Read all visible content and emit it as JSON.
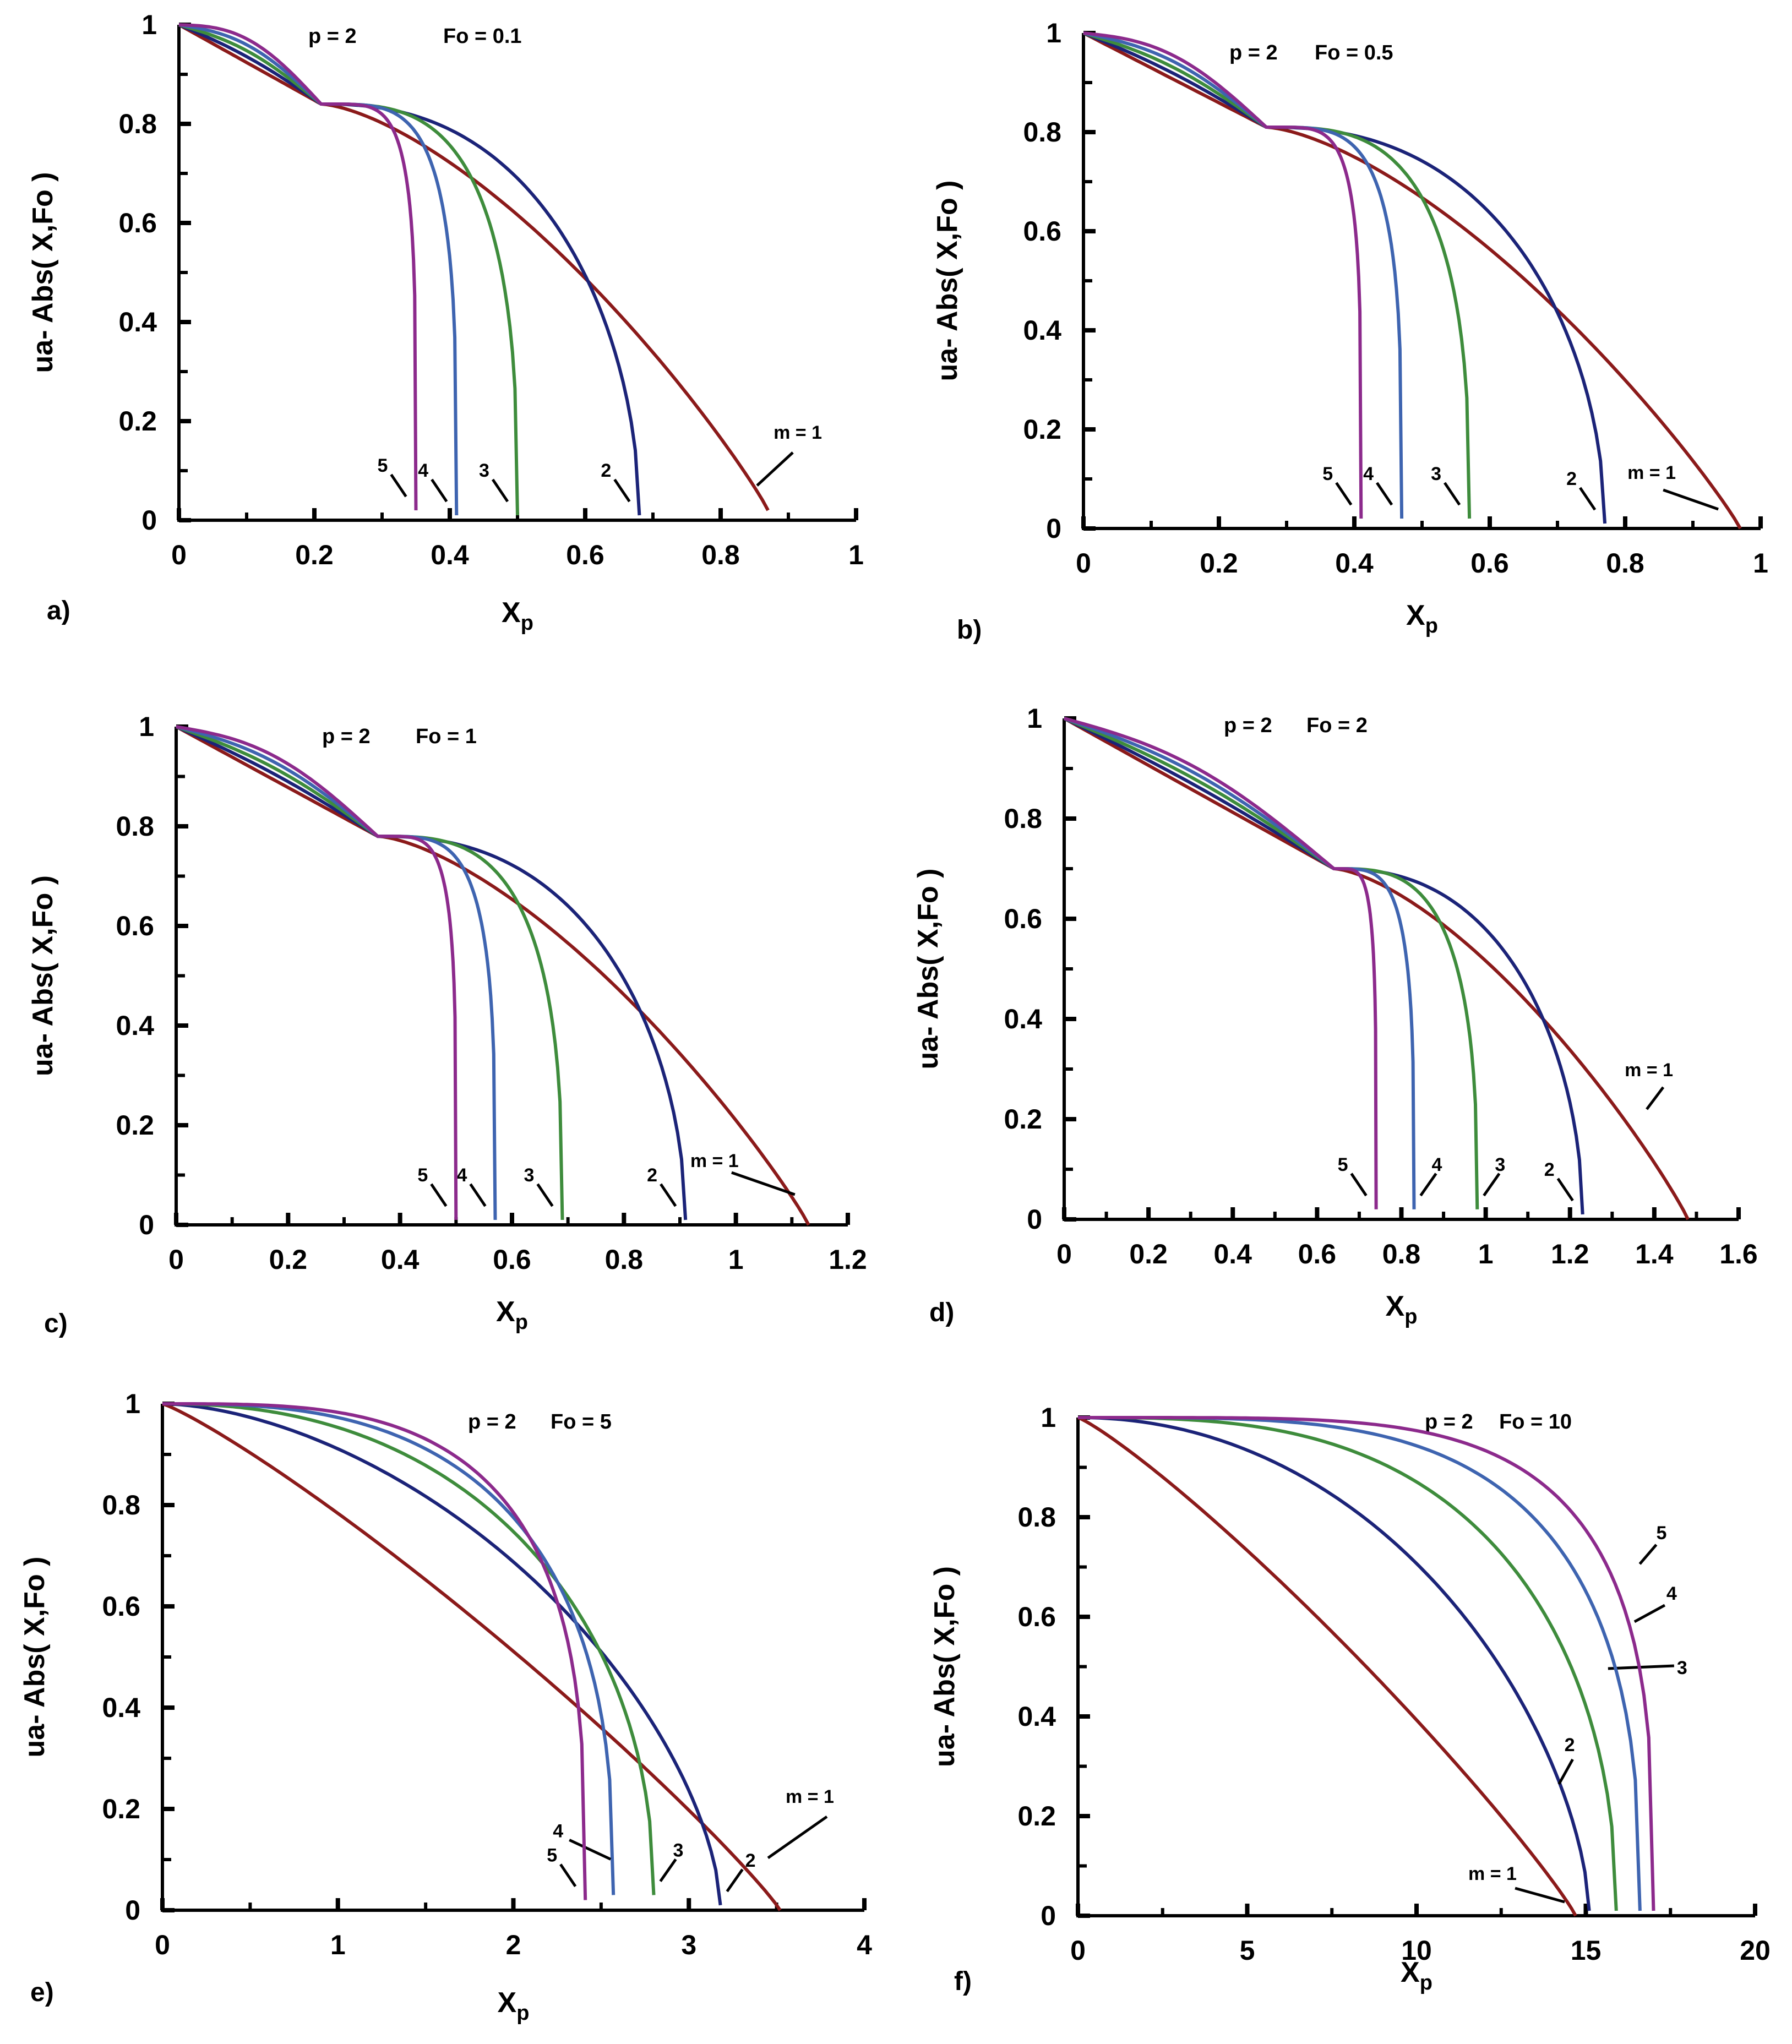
{
  "panels": [
    {
      "letter": "a)",
      "p_label": "p = 2",
      "fo_label": "Fo = 0.1"
    },
    {
      "letter": "b)",
      "p_label": "p = 2",
      "fo_label": "Fo = 0.5"
    },
    {
      "letter": "c)",
      "p_label": "p = 2",
      "fo_label": "Fo = 1"
    },
    {
      "letter": "d)",
      "p_label": "p = 2",
      "fo_label": "Fo = 2"
    },
    {
      "letter": "e)",
      "p_label": "p = 2",
      "fo_label": "Fo = 5"
    },
    {
      "letter": "f)",
      "p_label": "p = 2",
      "fo_label": "Fo = 10"
    }
  ],
  "chart_data": [
    {
      "type": "line",
      "title": "p = 2 Fo = 0.1",
      "xlabel": "Xp",
      "ylabel": "ua- Abs( X,Fo )",
      "xlim": [
        0,
        1
      ],
      "ylim": [
        0,
        1
      ],
      "xticks": [
        "0",
        "0.2",
        "0.4",
        "0.6",
        "0.8",
        "1"
      ],
      "yticks": [
        "0",
        "0.2",
        "0.4",
        "0.6",
        "0.8",
        "1"
      ],
      "cross": {
        "x": 0.21,
        "y": 0.84
      },
      "series": [
        {
          "name": "m = 1",
          "label": "m = 1",
          "end_x": 0.87,
          "end_y": 0.02,
          "color": "#8B1A1A"
        },
        {
          "name": "m = 2",
          "label": "2",
          "end_x": 0.68,
          "end_y": 0.01,
          "color": "#1B2378"
        },
        {
          "name": "m = 3",
          "label": "3",
          "end_x": 0.5,
          "end_y": 0.01,
          "color": "#3E8C3C"
        },
        {
          "name": "m = 4",
          "label": "4",
          "end_x": 0.41,
          "end_y": 0.01,
          "color": "#3E64B0"
        },
        {
          "name": "m = 5",
          "label": "5",
          "end_x": 0.35,
          "end_y": 0.02,
          "color": "#8C2A8C"
        }
      ]
    },
    {
      "type": "line",
      "title": "p = 2 Fo = 0.5",
      "xlabel": "Xp",
      "ylabel": "ua- Abs( X,Fo )",
      "xlim": [
        0,
        1
      ],
      "ylim": [
        0,
        1
      ],
      "xticks": [
        "0",
        "0.2",
        "0.4",
        "0.6",
        "0.8",
        "1"
      ],
      "yticks": [
        "0",
        "0.2",
        "0.4",
        "0.6",
        "0.8",
        "1"
      ],
      "cross": {
        "x": 0.27,
        "y": 0.81
      },
      "series": [
        {
          "name": "m = 1",
          "label": "m = 1",
          "end_x": 0.97,
          "end_y": 0.0,
          "color": "#8B1A1A"
        },
        {
          "name": "m = 2",
          "label": "2",
          "end_x": 0.77,
          "end_y": 0.01,
          "color": "#1B2378"
        },
        {
          "name": "m = 3",
          "label": "3",
          "end_x": 0.57,
          "end_y": 0.02,
          "color": "#3E8C3C"
        },
        {
          "name": "m = 4",
          "label": "4",
          "end_x": 0.47,
          "end_y": 0.02,
          "color": "#3E64B0"
        },
        {
          "name": "m = 5",
          "label": "5",
          "end_x": 0.41,
          "end_y": 0.02,
          "color": "#8C2A8C"
        }
      ]
    },
    {
      "type": "line",
      "title": "p = 2 Fo = 1",
      "xlabel": "Xp",
      "ylabel": "ua- Abs( X,Fo )",
      "xlim": [
        0,
        1.2
      ],
      "ylim": [
        0,
        1
      ],
      "xticks": [
        "0",
        "0.2",
        "0.4",
        "0.6",
        "0.8",
        "1",
        "1.2"
      ],
      "yticks": [
        "0",
        "0.2",
        "0.4",
        "0.6",
        "0.8",
        "1"
      ],
      "cross": {
        "x": 0.36,
        "y": 0.78
      },
      "series": [
        {
          "name": "m = 1",
          "label": "m = 1",
          "end_x": 1.13,
          "end_y": 0.0,
          "color": "#8B1A1A"
        },
        {
          "name": "m = 2",
          "label": "2",
          "end_x": 0.91,
          "end_y": 0.01,
          "color": "#1B2378"
        },
        {
          "name": "m = 3",
          "label": "3",
          "end_x": 0.69,
          "end_y": 0.01,
          "color": "#3E8C3C"
        },
        {
          "name": "m = 4",
          "label": "4",
          "end_x": 0.57,
          "end_y": 0.01,
          "color": "#3E64B0"
        },
        {
          "name": "m = 5",
          "label": "5",
          "end_x": 0.5,
          "end_y": 0.01,
          "color": "#8C2A8C"
        }
      ]
    },
    {
      "type": "line",
      "title": "p = 2 Fo = 2",
      "xlabel": "Xp",
      "ylabel": "ua- Abs( X,Fo )",
      "xlim": [
        0,
        1.6
      ],
      "ylim": [
        0,
        1
      ],
      "xticks": [
        "0",
        "0.2",
        "0.4",
        "0.6",
        "0.8",
        "1",
        "1.2",
        "1.4",
        "1.6"
      ],
      "yticks": [
        "0",
        "0.2",
        "0.4",
        "0.6",
        "0.8",
        "1"
      ],
      "cross": {
        "x": 0.64,
        "y": 0.7
      },
      "series": [
        {
          "name": "m = 1",
          "label": "m = 1",
          "end_x": 1.48,
          "end_y": 0.0,
          "color": "#8B1A1A"
        },
        {
          "name": "m = 2",
          "label": "2",
          "end_x": 1.23,
          "end_y": 0.01,
          "color": "#1B2378"
        },
        {
          "name": "m = 3",
          "label": "3",
          "end_x": 0.98,
          "end_y": 0.02,
          "color": "#3E8C3C"
        },
        {
          "name": "m = 4",
          "label": "4",
          "end_x": 0.83,
          "end_y": 0.02,
          "color": "#3E64B0"
        },
        {
          "name": "m = 5",
          "label": "5",
          "end_x": 0.74,
          "end_y": 0.02,
          "color": "#8C2A8C"
        }
      ]
    },
    {
      "type": "line",
      "title": "p = 2 Fo = 5",
      "xlabel": "Xp",
      "ylabel": "ua- Abs( X,Fo )",
      "xlim": [
        0,
        4
      ],
      "ylim": [
        0,
        1
      ],
      "xticks": [
        "0",
        "1",
        "2",
        "3",
        "4"
      ],
      "yticks": [
        "0",
        "0.2",
        "0.4",
        "0.6",
        "0.8",
        "1"
      ],
      "series": [
        {
          "name": "m = 1",
          "label": "m = 1",
          "end_x": 3.52,
          "end_y": 0.0,
          "color": "#8B1A1A"
        },
        {
          "name": "m = 2",
          "label": "2",
          "end_x": 3.18,
          "end_y": 0.01,
          "color": "#1B2378"
        },
        {
          "name": "m = 3",
          "label": "3",
          "end_x": 2.8,
          "end_y": 0.03,
          "color": "#3E8C3C"
        },
        {
          "name": "m = 4",
          "label": "4",
          "end_x": 2.57,
          "end_y": 0.03,
          "color": "#3E64B0"
        },
        {
          "name": "m = 5",
          "label": "5",
          "end_x": 2.41,
          "end_y": 0.02,
          "color": "#8C2A8C"
        }
      ]
    },
    {
      "type": "line",
      "title": "p = 2 Fo = 10",
      "xlabel": "Xp",
      "ylabel": "ua- Abs( X,Fo )",
      "xlim": [
        0,
        20
      ],
      "ylim": [
        0,
        1
      ],
      "xticks": [
        "0",
        "5",
        "10",
        "15",
        "20"
      ],
      "yticks": [
        "0",
        "0.2",
        "0.4",
        "0.6",
        "0.8",
        "1"
      ],
      "series": [
        {
          "name": "m = 1",
          "label": "m = 1",
          "end_x": 14.7,
          "end_y": 0.0,
          "color": "#8B1A1A"
        },
        {
          "name": "m = 2",
          "label": "2",
          "end_x": 15.1,
          "end_y": 0.01,
          "color": "#1B2378"
        },
        {
          "name": "m = 3",
          "label": "3",
          "end_x": 15.9,
          "end_y": 0.01,
          "color": "#3E8C3C"
        },
        {
          "name": "m = 4",
          "label": "4",
          "end_x": 16.6,
          "end_y": 0.01,
          "color": "#3E64B0"
        },
        {
          "name": "m = 5",
          "label": "5",
          "end_x": 17.0,
          "end_y": 0.01,
          "color": "#8C2A8C"
        }
      ]
    }
  ]
}
